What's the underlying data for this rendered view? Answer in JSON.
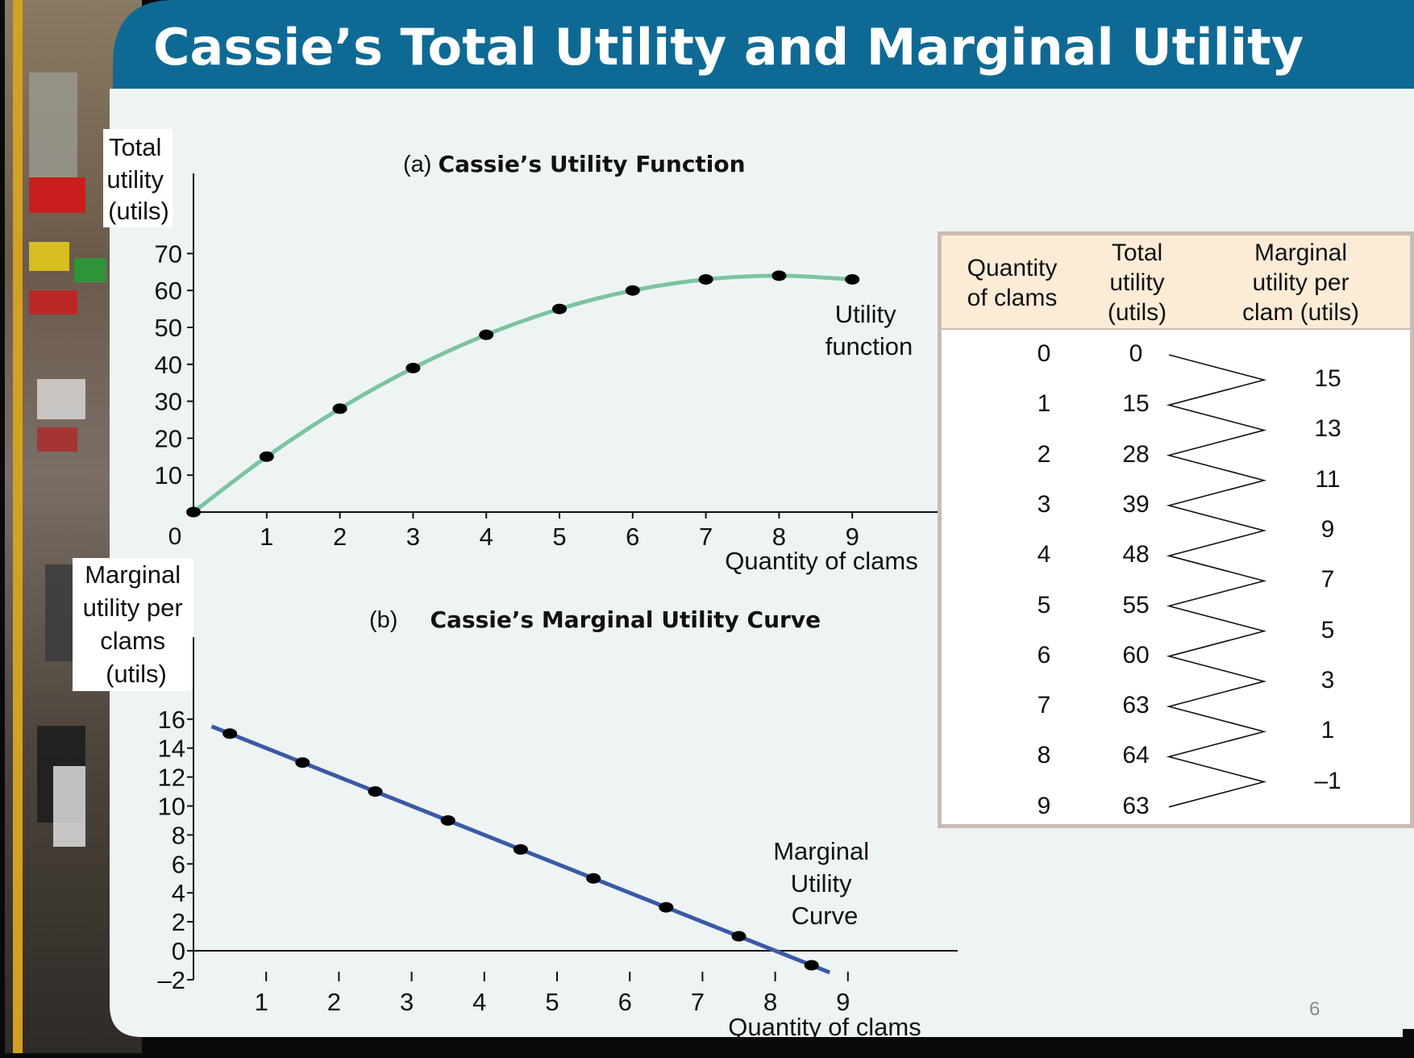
{
  "slide": {
    "title": "Cassie’s Total Utility and Marginal Utility",
    "page_number": "6"
  },
  "chart_data": [
    {
      "type": "line",
      "panel": "(a)",
      "title": "Cassie’s Utility Function",
      "ylabel": "Total utility (utils)",
      "xlabel": "Quantity of clams",
      "x": [
        0,
        1,
        2,
        3,
        4,
        5,
        6,
        7,
        8,
        9
      ],
      "series": [
        {
          "name": "Utility function",
          "values": [
            0,
            15,
            28,
            39,
            48,
            55,
            60,
            63,
            64,
            63
          ]
        }
      ],
      "xlim": [
        0,
        10
      ],
      "ylim": [
        0,
        70
      ],
      "yticks": [
        10,
        20,
        30,
        40,
        50,
        60,
        70
      ],
      "xticks": [
        1,
        2,
        3,
        4,
        5,
        6,
        7,
        8,
        9
      ],
      "origin_label": "0",
      "color": "#7cc4a0"
    },
    {
      "type": "line",
      "panel": "(b)",
      "title": "Cassie’s Marginal Utility Curve",
      "ylabel": "Marginal utility per clams (utils)",
      "xlabel": "Quantity of clams",
      "x": [
        0.5,
        1.5,
        2.5,
        3.5,
        4.5,
        5.5,
        6.5,
        7.5,
        8.5
      ],
      "series": [
        {
          "name": "Marginal Utility Curve",
          "values": [
            15,
            13,
            11,
            9,
            7,
            5,
            3,
            1,
            -1
          ]
        }
      ],
      "xlim": [
        0,
        10
      ],
      "ylim": [
        -2,
        16
      ],
      "yticks": [
        -2,
        0,
        2,
        4,
        6,
        8,
        10,
        12,
        14,
        16
      ],
      "xticks": [
        1,
        2,
        3,
        4,
        5,
        6,
        7,
        8,
        9
      ],
      "color": "#3a5aa6"
    },
    {
      "type": "table",
      "headers": [
        "Quantity\nof clams",
        "Total\nutility\n(utils)",
        "Marginal\nutility per\nclam (utils)"
      ],
      "quantity": [
        "0",
        "1",
        "2",
        "3",
        "4",
        "5",
        "6",
        "7",
        "8",
        "9"
      ],
      "total_utility": [
        "0",
        "15",
        "28",
        "39",
        "48",
        "55",
        "60",
        "63",
        "64",
        "63"
      ],
      "marginal_utility": [
        "15",
        "13",
        "11",
        "9",
        "7",
        "5",
        "3",
        "1",
        "–1"
      ]
    }
  ],
  "colors": {
    "title_bar": "#0e6a94",
    "content_bg": "#eef4f4",
    "table_border": "#c8bcb4",
    "table_header_bg": "#fcecd6"
  }
}
